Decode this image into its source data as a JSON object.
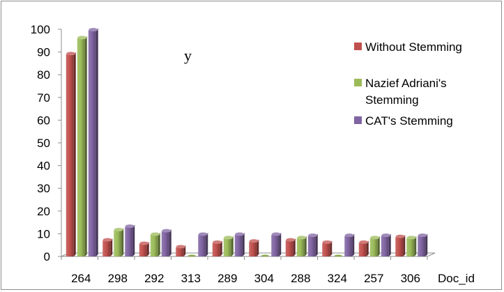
{
  "chart_data": {
    "type": "bar",
    "title": "",
    "annotation": "y",
    "xlabel": "Doc_id",
    "ylabel": "",
    "ylim": [
      0,
      100
    ],
    "yticks": [
      0,
      10,
      20,
      30,
      40,
      50,
      60,
      70,
      80,
      90,
      100
    ],
    "categories": [
      "264",
      "298",
      "292",
      "313",
      "289",
      "304",
      "288",
      "324",
      "257",
      "306"
    ],
    "series": [
      {
        "name": "Without Stemming",
        "color": "#c0504d",
        "values": [
          89,
          7,
          5.5,
          4,
          6,
          6.5,
          7,
          6,
          6,
          8.5
        ]
      },
      {
        "name": "Nazief Adriani's Stemming",
        "color": "#9bbb59",
        "values": [
          96,
          11.5,
          9.5,
          0,
          8,
          0,
          8,
          0,
          8,
          8
        ]
      },
      {
        "name": "CAT's Stemming",
        "color": "#8064a2",
        "values": [
          99.5,
          13,
          11,
          9.5,
          9.5,
          9.5,
          9,
          9,
          9,
          9
        ]
      }
    ],
    "grid": false,
    "legend_position": "right"
  }
}
